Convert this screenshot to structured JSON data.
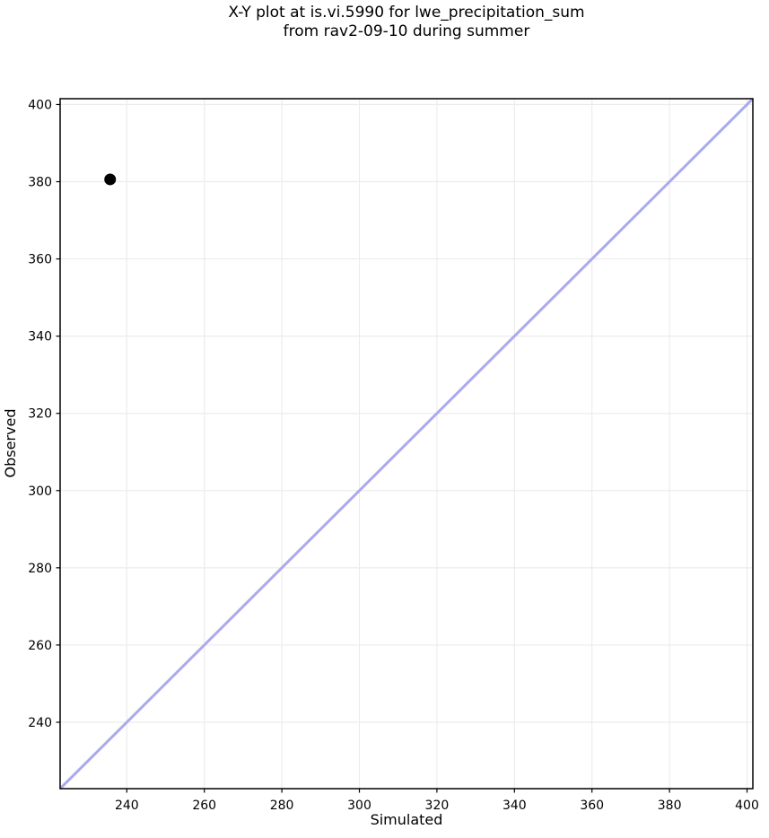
{
  "figure": {
    "background": "#ffffff",
    "title_line1": "X-Y plot at is.vi.5990 for lwe_precipitation_sum",
    "title_line2": "from rav2-09-10 during summer"
  },
  "chart_data": {
    "type": "scatter",
    "title": "X-Y plot at is.vi.5990 for lwe_precipitation_sum\nfrom rav2-09-10 during summer",
    "xlabel": "Simulated",
    "ylabel": "Observed",
    "xlim": [
      222.8,
      401.5
    ],
    "ylim": [
      222.8,
      401.5
    ],
    "xticks": [
      240,
      260,
      280,
      300,
      320,
      340,
      360,
      380,
      400
    ],
    "yticks": [
      240,
      260,
      280,
      300,
      320,
      340,
      360,
      380,
      400
    ],
    "grid": true,
    "legend": "none",
    "series": [
      {
        "name": "observed-vs-simulated-points",
        "marker": "circle",
        "color": "#000000",
        "radius": 6.5,
        "points": [
          {
            "x": 235.7,
            "y": 380.6
          }
        ]
      }
    ],
    "reference_line": {
      "type": "identity-1to1",
      "from": 222.8,
      "to": 401.5,
      "color": "#aaaaee",
      "stroke_width": 3
    },
    "grid_color": "#ececec",
    "spine_color": "#000000",
    "tick_color": "#000000",
    "text_color": "#000000"
  }
}
